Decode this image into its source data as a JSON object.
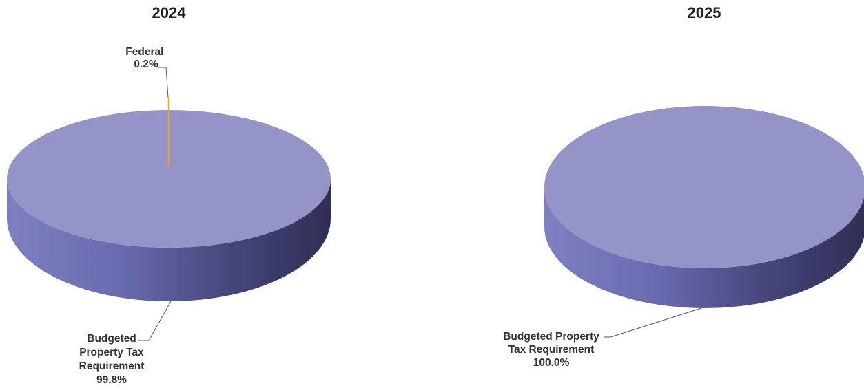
{
  "colors": {
    "slice_top": "#9494c8",
    "slice_side_light": "#6e6eb4",
    "slice_side_dark": "#33335a",
    "federal": "#e3a72f"
  },
  "chart_data": [
    {
      "type": "pie",
      "style": "3d",
      "title": "2024",
      "slices": [
        {
          "label": "Federal",
          "value": 0.2,
          "value_label": "0.2%"
        },
        {
          "label": "Budgeted Property Tax Requirement",
          "value": 99.8,
          "value_label": "99.8%"
        }
      ]
    },
    {
      "type": "pie",
      "style": "3d",
      "title": "2025",
      "slices": [
        {
          "label": "Budgeted Property Tax Requirement",
          "value": 100.0,
          "value_label": "100.0%"
        }
      ]
    }
  ]
}
